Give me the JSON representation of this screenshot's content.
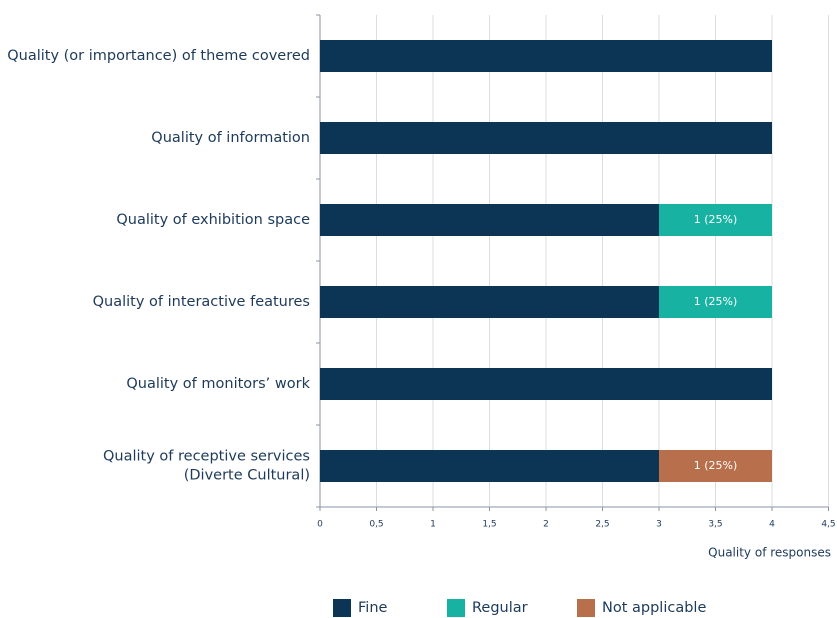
{
  "chart_data": {
    "type": "stacked-barh",
    "categories": [
      "Quality (or importance) of theme covered",
      "Quality of information",
      "Quality of exhibition space",
      "Quality of interactive features",
      "Quality of monitors’ work",
      [
        "Quality of receptive services",
        "(Diverte Cultural)"
      ]
    ],
    "series": [
      {
        "name": "Fine",
        "color": "#0c3455",
        "values": [
          4,
          4,
          3,
          3,
          4,
          3
        ]
      },
      {
        "name": "Regular",
        "color": "#17b2a2",
        "values": [
          0,
          0,
          1,
          1,
          0,
          0
        ],
        "value_labels": [
          null,
          null,
          "1 (25%)",
          "1 (25%)",
          null,
          null
        ]
      },
      {
        "name": "Not applicable",
        "color": "#b8704c",
        "values": [
          0,
          0,
          0,
          0,
          0,
          1
        ],
        "value_labels": [
          null,
          null,
          null,
          null,
          null,
          "1 (25%)"
        ]
      }
    ],
    "xlabel": "Quality of responses",
    "xlim": [
      0,
      4.5
    ],
    "xticks": [
      0,
      {
        "value": 0.5,
        "label": "0,5"
      },
      1,
      {
        "value": 1.5,
        "label": "1,5"
      },
      2,
      {
        "value": 2.5,
        "label": "2,5"
      },
      3,
      {
        "value": 3.5,
        "label": "3,5"
      },
      4,
      {
        "value": 4.5,
        "label": "4,5"
      }
    ],
    "grid": true,
    "legend": "bottom"
  }
}
